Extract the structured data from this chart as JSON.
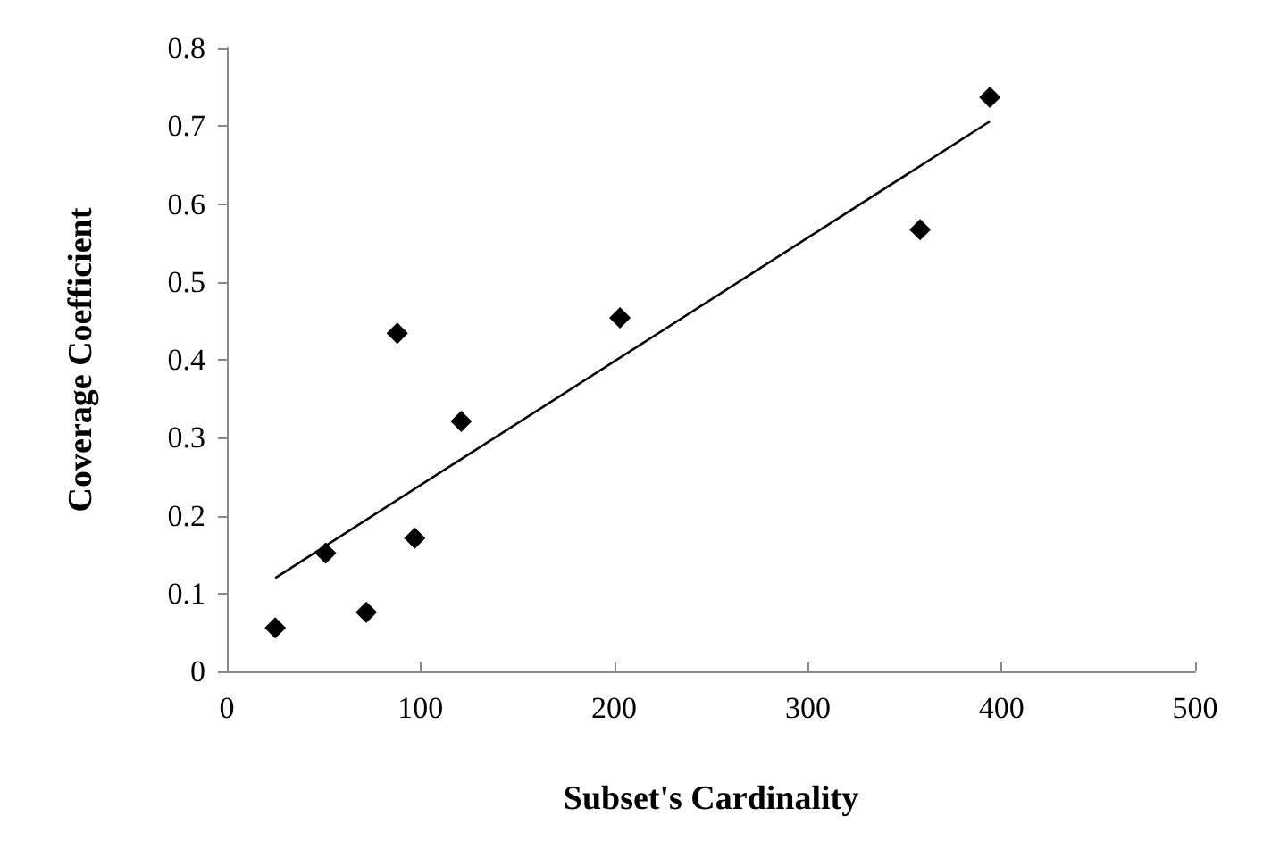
{
  "chart_data": {
    "type": "scatter",
    "xlabel": "Subset's Cardinality",
    "ylabel": "Coverage Coefficient",
    "xlim": [
      0,
      500
    ],
    "xticks": [
      0,
      100,
      200,
      300,
      400,
      500
    ],
    "ylim": [
      0,
      0.8
    ],
    "yticks": [
      0,
      0.1,
      0.2,
      0.3,
      0.4,
      0.5,
      0.6,
      0.7,
      0.8
    ],
    "grid": false,
    "series": [
      {
        "color": "#000000",
        "marker": "diamond",
        "x": [
          25,
          51,
          72,
          88,
          97,
          121,
          203,
          358,
          394
        ],
        "values": [
          0.056,
          0.152,
          0.076,
          0.434,
          0.171,
          0.321,
          0.454,
          0.567,
          0.737
        ]
      },
      {
        "type": "line",
        "color": "#000000",
        "marker": "none",
        "line_style": "solid",
        "x": [
          25,
          394
        ],
        "values": [
          0.12,
          0.706
        ]
      }
    ]
  }
}
